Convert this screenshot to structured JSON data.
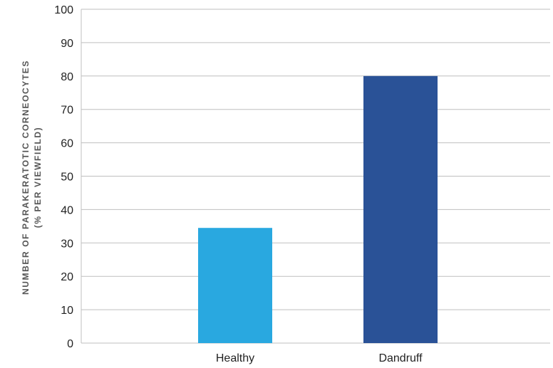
{
  "chart_data": {
    "type": "bar",
    "title": "",
    "xlabel": "",
    "ylabel": [
      "NUMBER OF PARAKERATOTIC CORNEOCYTES",
      "(% PER VIEWFIELD)"
    ],
    "categories": [
      "Healthy",
      "Dandruff"
    ],
    "values": [
      34.5,
      80
    ],
    "bar_colors": [
      "#29a8e0",
      "#2a5297"
    ],
    "ylim": [
      0,
      100
    ],
    "yticks": [
      0,
      10,
      20,
      30,
      40,
      50,
      60,
      70,
      80,
      90,
      100
    ],
    "grid": true,
    "gridline_color": "#bfbfbf",
    "legend": false
  }
}
